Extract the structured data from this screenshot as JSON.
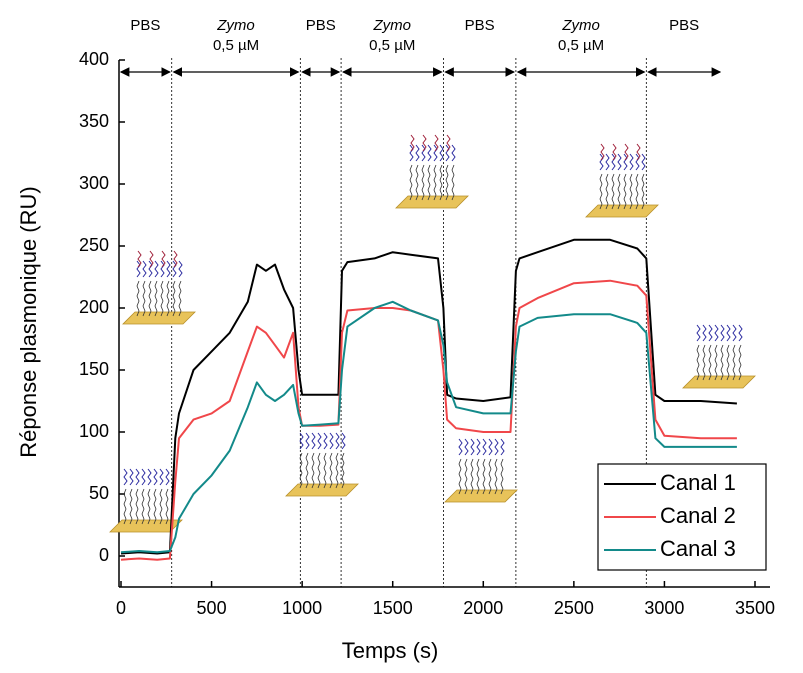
{
  "chart_data": {
    "type": "line",
    "xlabel": "Temps (s)",
    "ylabel": "Réponse plasmonique (RU)",
    "x": [
      0,
      100,
      200,
      270,
      300,
      320,
      400,
      500,
      600,
      700,
      750,
      800,
      850,
      900,
      950,
      980,
      1000,
      1100,
      1200,
      1220,
      1250,
      1400,
      1500,
      1600,
      1750,
      1780,
      1800,
      1850,
      2000,
      2150,
      2180,
      2200,
      2300,
      2500,
      2700,
      2850,
      2900,
      2950,
      3000,
      3200,
      3400
    ],
    "series": [
      {
        "name": "Canal 1",
        "color": "#000000",
        "values": [
          2,
          3,
          2,
          3,
          95,
          115,
          150,
          165,
          180,
          205,
          235,
          230,
          235,
          215,
          200,
          150,
          130,
          130,
          130,
          230,
          237,
          240,
          245,
          243,
          240,
          200,
          130,
          127,
          125,
          128,
          230,
          240,
          245,
          255,
          255,
          248,
          240,
          130,
          125,
          125,
          123
        ]
      },
      {
        "name": "Canal 2",
        "color": "#f0474a",
        "values": [
          -3,
          -2,
          -3,
          -2,
          60,
          95,
          110,
          115,
          125,
          165,
          185,
          180,
          170,
          160,
          180,
          120,
          105,
          105,
          106,
          180,
          198,
          200,
          200,
          198,
          190,
          150,
          110,
          103,
          100,
          100,
          185,
          200,
          208,
          220,
          222,
          218,
          210,
          110,
          97,
          95,
          95
        ]
      },
      {
        "name": "Canal 3",
        "color": "#138a8a",
        "values": [
          3,
          4,
          3,
          4,
          15,
          30,
          50,
          65,
          85,
          120,
          140,
          130,
          125,
          130,
          138,
          115,
          105,
          106,
          107,
          150,
          185,
          200,
          205,
          198,
          190,
          170,
          140,
          120,
          115,
          115,
          165,
          185,
          192,
          195,
          195,
          188,
          180,
          95,
          88,
          88,
          88
        ]
      }
    ],
    "xlim": [
      0,
      3500
    ],
    "xticks": [
      0,
      500,
      1000,
      1500,
      2000,
      2500,
      3000,
      3500
    ],
    "ylim": [
      -25,
      400
    ],
    "yticks": [
      0,
      50,
      100,
      150,
      200,
      250,
      300,
      350,
      400
    ],
    "phase_boundaries": [
      280,
      990,
      1215,
      1780,
      2180,
      2900
    ],
    "phases": [
      {
        "label": "PBS"
      },
      {
        "label": "Zymo",
        "concentration": "0,5 µM"
      },
      {
        "label": "PBS"
      },
      {
        "label": "Zymo",
        "concentration": "0,5 µM"
      },
      {
        "label": "PBS"
      },
      {
        "label": "Zymo",
        "concentration": "0,5 µM"
      },
      {
        "label": "PBS"
      }
    ],
    "legend": "lower right"
  }
}
